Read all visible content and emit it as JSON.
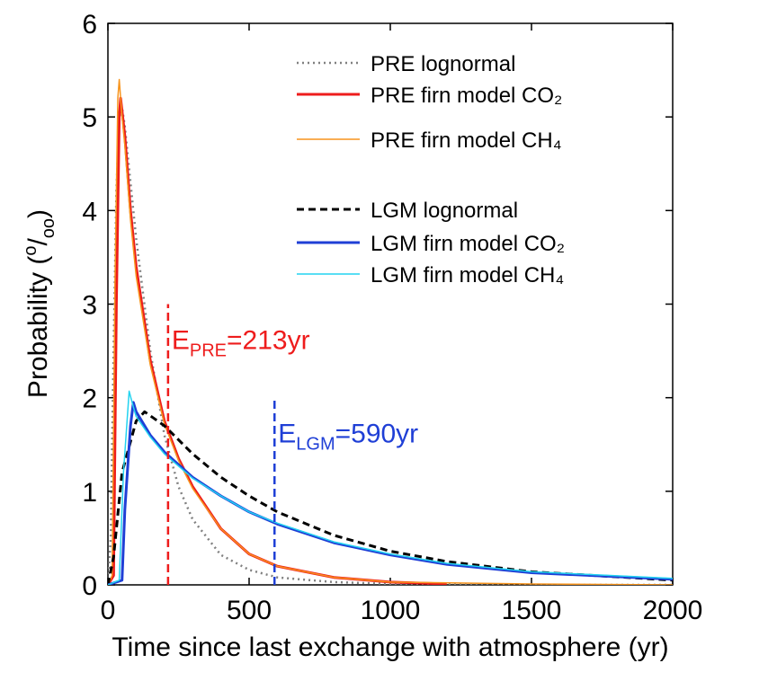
{
  "chart_data": {
    "type": "line",
    "xlabel": "Time since last exchange with atmosphere (yr)",
    "ylabel": {
      "text": "Probability (",
      "sup": "o",
      "mid": "/",
      "sub": "oo",
      "end": ")"
    },
    "xlim": [
      0,
      2000
    ],
    "ylim": [
      0,
      6
    ],
    "xticks": [
      0,
      500,
      1000,
      1500,
      2000
    ],
    "yticks": [
      0,
      1,
      2,
      3,
      4,
      5,
      6
    ],
    "legend": "upper right",
    "series": [
      {
        "name": "PRE lognormal",
        "color": "#808080",
        "style": "dotted",
        "width": 2.5,
        "x": [
          0,
          10,
          20,
          30,
          40,
          50,
          60,
          80,
          100,
          150,
          200,
          250,
          300,
          400,
          500,
          600,
          800,
          1000,
          1500,
          2000
        ],
        "values": [
          0,
          0.5,
          2.5,
          4.2,
          5.0,
          5.1,
          4.9,
          4.3,
          3.7,
          2.5,
          1.6,
          1.05,
          0.7,
          0.32,
          0.16,
          0.08,
          0.03,
          0.01,
          0,
          0
        ]
      },
      {
        "name": "PRE firn model CO₂",
        "color": "#ee1c1c",
        "style": "solid",
        "width": 3,
        "x": [
          0,
          20,
          30,
          40,
          45,
          60,
          80,
          100,
          150,
          200,
          250,
          300,
          400,
          500,
          600,
          800,
          1000,
          1200
        ],
        "values": [
          0,
          0.1,
          3,
          5.0,
          5.2,
          4.8,
          4.0,
          3.4,
          2.4,
          1.75,
          1.35,
          1.05,
          0.6,
          0.33,
          0.2,
          0.08,
          0.03,
          0.01
        ]
      },
      {
        "name": "PRE firn model CH₄",
        "color": "#f7941d",
        "style": "solid",
        "width": 1.5,
        "x": [
          0,
          15,
          25,
          35,
          40,
          50,
          60,
          80,
          100,
          150,
          200,
          250,
          300,
          400,
          500,
          600,
          800,
          1000,
          1500,
          2000
        ],
        "values": [
          0,
          0.1,
          3.2,
          5.2,
          5.4,
          5.0,
          4.7,
          3.9,
          3.3,
          2.35,
          1.72,
          1.33,
          1.03,
          0.6,
          0.33,
          0.2,
          0.08,
          0.03,
          0.01,
          0
        ]
      },
      {
        "name": "LGM lognormal",
        "color": "#000000",
        "style": "dashed",
        "width": 3,
        "x": [
          0,
          20,
          50,
          100,
          130,
          200,
          300,
          400,
          500,
          600,
          800,
          1000,
          1200,
          1500,
          2000
        ],
        "values": [
          0,
          0.3,
          1.2,
          1.75,
          1.85,
          1.7,
          1.4,
          1.15,
          0.95,
          0.78,
          0.53,
          0.36,
          0.25,
          0.14,
          0.05
        ]
      },
      {
        "name": "LGM firn model CO₂",
        "color": "#1f3fd6",
        "style": "solid",
        "width": 3,
        "x": [
          0,
          50,
          60,
          80,
          90,
          100,
          150,
          200,
          300,
          400,
          500,
          600,
          800,
          1000,
          1200,
          1500,
          2000
        ],
        "values": [
          0,
          0.05,
          0.8,
          1.7,
          1.95,
          1.85,
          1.6,
          1.42,
          1.15,
          0.95,
          0.78,
          0.65,
          0.45,
          0.32,
          0.22,
          0.13,
          0.06
        ]
      },
      {
        "name": "LGM firn model CH₄",
        "color": "#22d3f0",
        "style": "solid",
        "width": 1.5,
        "x": [
          0,
          40,
          55,
          75,
          90,
          100,
          150,
          200,
          300,
          400,
          500,
          600,
          800,
          1000,
          1200,
          1500,
          2000
        ],
        "values": [
          0,
          0.05,
          1.2,
          2.07,
          1.9,
          1.8,
          1.58,
          1.4,
          1.14,
          0.95,
          0.78,
          0.66,
          0.46,
          0.33,
          0.23,
          0.14,
          0.07
        ]
      }
    ],
    "annotations": [
      {
        "x": 213,
        "ymax": 3,
        "color": "#ee1c1c",
        "label": "E",
        "sub": "PRE",
        "suffix": "=213yr"
      },
      {
        "x": 590,
        "ymax": 2,
        "color": "#1f3fd6",
        "label": "E",
        "sub": "LGM",
        "suffix": "=590yr"
      }
    ]
  }
}
